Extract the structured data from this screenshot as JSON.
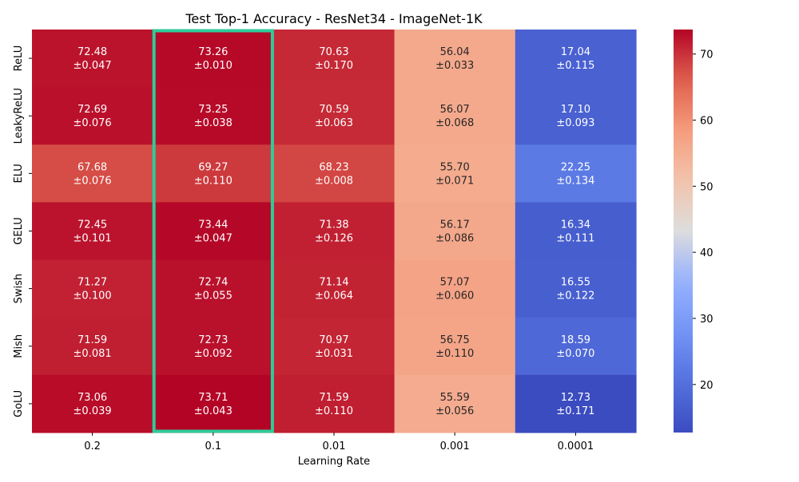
{
  "chart_data": {
    "type": "heatmap",
    "title": "Test Top-1 Accuracy - ResNet34 - ImageNet-1K",
    "xlabel": "Learning Rate",
    "ylabel": "",
    "x_categories": [
      "0.2",
      "0.1",
      "0.01",
      "0.001",
      "0.0001"
    ],
    "y_categories": [
      "ReLU",
      "LeakyReLU",
      "ELU",
      "GELU",
      "Swish",
      "Mish",
      "GoLU"
    ],
    "values": [
      [
        72.48,
        73.26,
        70.63,
        56.04,
        17.04
      ],
      [
        72.69,
        73.25,
        70.59,
        56.07,
        17.1
      ],
      [
        67.68,
        69.27,
        68.23,
        55.7,
        22.25
      ],
      [
        72.45,
        73.44,
        71.38,
        56.17,
        16.34
      ],
      [
        71.27,
        72.74,
        71.14,
        57.07,
        16.55
      ],
      [
        71.59,
        72.73,
        70.97,
        56.75,
        18.59
      ],
      [
        73.06,
        73.71,
        71.59,
        55.59,
        12.73
      ]
    ],
    "value_labels": [
      [
        "72.48",
        "73.26",
        "70.63",
        "56.04",
        "17.04"
      ],
      [
        "72.69",
        "73.25",
        "70.59",
        "56.07",
        "17.10"
      ],
      [
        "67.68",
        "69.27",
        "68.23",
        "55.70",
        "22.25"
      ],
      [
        "72.45",
        "73.44",
        "71.38",
        "56.17",
        "16.34"
      ],
      [
        "71.27",
        "72.74",
        "71.14",
        "57.07",
        "16.55"
      ],
      [
        "71.59",
        "72.73",
        "70.97",
        "56.75",
        "18.59"
      ],
      [
        "73.06",
        "73.71",
        "71.59",
        "55.59",
        "12.73"
      ]
    ],
    "std_labels": [
      [
        "±0.047",
        "±0.010",
        "±0.170",
        "±0.033",
        "±0.115"
      ],
      [
        "±0.076",
        "±0.038",
        "±0.063",
        "±0.068",
        "±0.093"
      ],
      [
        "±0.076",
        "±0.110",
        "±0.008",
        "±0.071",
        "±0.134"
      ],
      [
        "±0.101",
        "±0.047",
        "±0.126",
        "±0.086",
        "±0.111"
      ],
      [
        "±0.100",
        "±0.055",
        "±0.064",
        "±0.060",
        "±0.122"
      ],
      [
        "±0.081",
        "±0.092",
        "±0.031",
        "±0.110",
        "±0.070"
      ],
      [
        "±0.039",
        "±0.043",
        "±0.110",
        "±0.056",
        "±0.171"
      ]
    ],
    "colormap": "coolwarm",
    "colorbar": {
      "vmin": 12.73,
      "vmax": 73.71,
      "ticks": [
        20,
        30,
        40,
        50,
        60,
        70
      ],
      "tick_labels": [
        "20",
        "30",
        "40",
        "50",
        "60",
        "70"
      ]
    },
    "highlight": {
      "column": "0.1",
      "color": "#2ecc9a"
    }
  }
}
